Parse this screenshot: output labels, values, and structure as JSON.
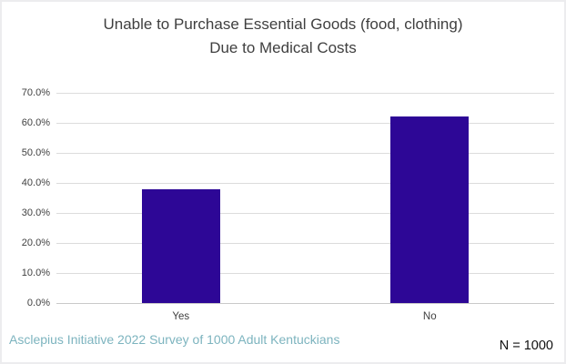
{
  "chart_data": {
    "type": "bar",
    "title_line1": "Unable to Purchase Essential Goods (food, clothing)",
    "title_line2": "Due to Medical Costs",
    "categories": [
      "Yes",
      "No"
    ],
    "values": [
      38,
      62
    ],
    "ylim": [
      0,
      70
    ],
    "y_tick_labels": [
      "70.0%",
      "60.0%",
      "50.0%",
      "40.0%",
      "30.0%",
      "20.0%",
      "10.0%",
      "0.0%"
    ],
    "xlabel": "",
    "ylabel": "",
    "grid": "horizontal",
    "legend": "none",
    "bar_color": "#2d0796",
    "gridline_color": "#dcdcdc",
    "title_color": "#3f3f3f",
    "tick_label_color": "#404040"
  },
  "footer": {
    "source_note": "Asclepius Initiative 2022 Survey of 1000 Adult Kentuckians",
    "source_note_color": "#7db4bf",
    "sample_size": "N = 1000"
  }
}
